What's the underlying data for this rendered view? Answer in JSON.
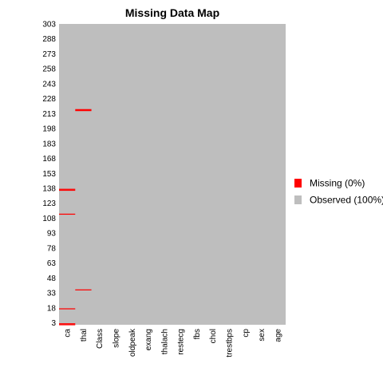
{
  "chart_data": {
    "type": "heatmap",
    "title": "Missing Data Map",
    "columns": [
      "ca",
      "thal",
      "Class",
      "slope",
      "oldpeak",
      "exang",
      "thalach",
      "restecg",
      "fbs",
      "chol",
      "trestbps",
      "cp",
      "sex",
      "age"
    ],
    "row_count": 303,
    "y_ticks": [
      3,
      18,
      33,
      48,
      63,
      78,
      93,
      108,
      123,
      138,
      153,
      168,
      183,
      198,
      213,
      228,
      243,
      258,
      273,
      288,
      303
    ],
    "missing": [
      {
        "column": "ca",
        "row": 1
      },
      {
        "column": "ca",
        "row": 2
      },
      {
        "column": "ca",
        "row": 17
      },
      {
        "column": "ca",
        "row": 112
      },
      {
        "column": "ca",
        "row": 136
      },
      {
        "column": "ca",
        "row": 137
      },
      {
        "column": "thal",
        "row": 36
      },
      {
        "column": "thal",
        "row": 216
      },
      {
        "column": "thal",
        "row": 217
      }
    ],
    "legend": [
      {
        "label": "Missing (0%)",
        "color": "#ff0000"
      },
      {
        "label": "Observed (100%)",
        "color": "#bebebe"
      }
    ],
    "legend_position": "right",
    "colors": {
      "missing": "#ff0000",
      "observed": "#bebebe"
    }
  }
}
